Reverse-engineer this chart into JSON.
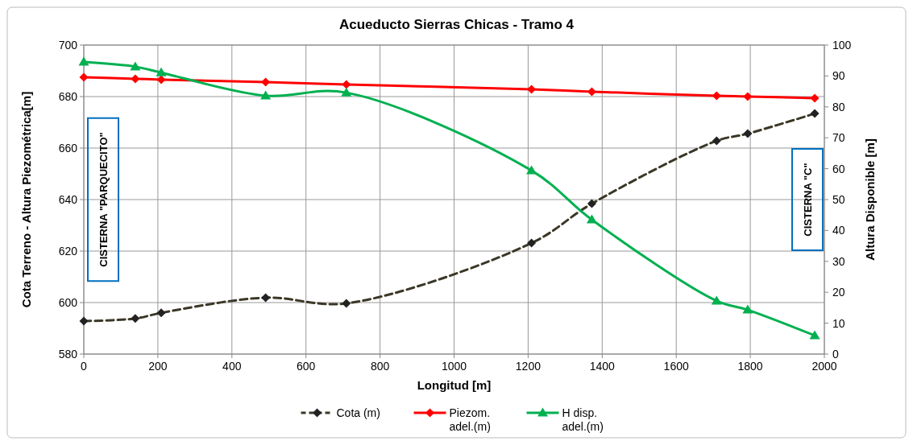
{
  "chart_data": {
    "type": "line",
    "title": "Acueducto Sierras Chicas - Tramo 4",
    "xlabel": "Longitud [m]",
    "ylabel": "Cota  Terreno - Altura Piezométrica[m]",
    "y2label": "Altura Disponible [m]",
    "x": [
      0,
      139,
      209,
      491,
      709,
      1209,
      1372,
      1709,
      1793,
      1974
    ],
    "series": [
      {
        "name": "Cota (m)",
        "color": "#3b3726",
        "marker": "diamond",
        "line_style": "dashed",
        "values": [
          592.8,
          593.8,
          596,
          601.9,
          599.7,
          623.1,
          638.4,
          662.8,
          665.6,
          673.4
        ]
      },
      {
        "name": "Piezom. adel.(m)",
        "color": "#ff0000",
        "marker": "diamond",
        "line_style": "solid",
        "values": [
          687.5,
          686.9,
          686.6,
          685.6,
          684.7,
          682.8,
          681.9,
          680.3,
          680,
          679.4
        ]
      },
      {
        "name": "H disp. adel.(m)",
        "color": "#00b050",
        "marker": "triangle",
        "line_style": "solid",
        "axis": "y2",
        "values": [
          94.5,
          93,
          91.1,
          83.6,
          84.6,
          59.4,
          43.5,
          17.2,
          14.3,
          6
        ]
      }
    ],
    "xlim": [
      0,
      2000
    ],
    "xticks": [
      0,
      200,
      400,
      600,
      800,
      1000,
      1200,
      1400,
      1600,
      1800,
      2000
    ],
    "ylim": [
      580,
      700
    ],
    "yticks": [
      580,
      600,
      620,
      640,
      660,
      680,
      700
    ],
    "y2lim": [
      0,
      100
    ],
    "y2ticks": [
      0,
      10,
      20,
      30,
      40,
      50,
      60,
      70,
      80,
      90,
      100
    ],
    "annotations": [
      "CISTERNA \"PARQUECITO\"",
      "CISTERNA \"C\""
    ],
    "grid": true,
    "legend": "bottom"
  }
}
